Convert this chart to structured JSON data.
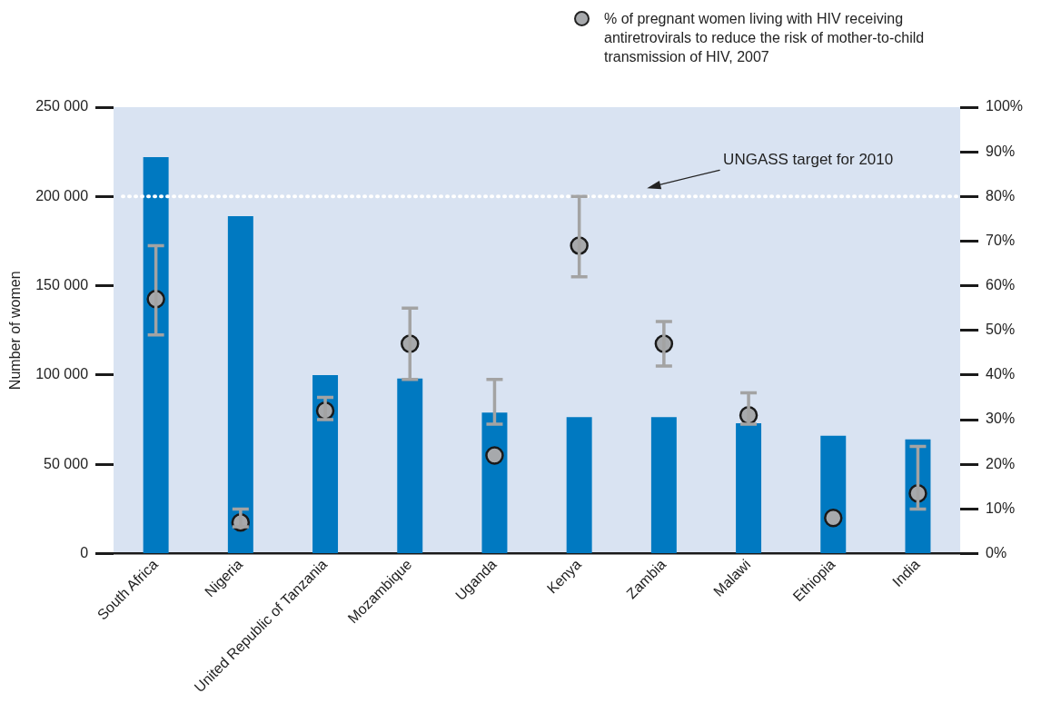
{
  "chart_data": {
    "type": "bar",
    "categories": [
      "South Africa",
      "Nigeria",
      "United Republic of Tanzania",
      "Mozambique",
      "Uganda",
      "Kenya",
      "Zambia",
      "Malawi",
      "Ethiopia",
      "India"
    ],
    "ylabel": "Number of women",
    "series": [
      {
        "color": "#0079c1",
        "values": [
          222000,
          189000,
          100000,
          98000,
          79000,
          76500,
          76500,
          73000,
          66000,
          64000
        ]
      },
      {
        "type": "scatter",
        "axis": "y2",
        "name": "% of pregnant women living with HIV receiving antiretrovirals to reduce the risk of mother-to-child transmission of HIV, 2007",
        "color": "#a7a9ac",
        "marker": "circle",
        "x": [
          "South Africa",
          "Nigeria",
          "United Republic of Tanzania",
          "Mozambique",
          "Uganda",
          "Kenya",
          "Zambia",
          "Malawi",
          "Ethiopia",
          "India"
        ],
        "values": [
          57,
          7,
          32,
          47,
          22,
          69,
          47,
          31,
          8,
          13.5
        ],
        "errors": [
          [
            49,
            69
          ],
          [
            6,
            10
          ],
          [
            30,
            35
          ],
          [
            39,
            55
          ],
          [
            29,
            39
          ],
          [
            62,
            80
          ],
          [
            42,
            52
          ],
          [
            29,
            36
          ],
          null,
          [
            10,
            24
          ]
        ]
      }
    ],
    "ylim": [
      0,
      250000
    ],
    "yticks": [
      {
        "value": 0,
        "label": "0"
      },
      {
        "value": 50000,
        "label": "50 000"
      },
      {
        "value": 100000,
        "label": "100 000"
      },
      {
        "value": 150000,
        "label": "150 000"
      },
      {
        "value": 200000,
        "label": "200 000"
      },
      {
        "value": 250000,
        "label": "250 000"
      }
    ],
    "y2lim": [
      0,
      100
    ],
    "y2ticks": [
      {
        "value": 0,
        "label": "0%"
      },
      {
        "value": 10,
        "label": "10%"
      },
      {
        "value": 20,
        "label": "20%"
      },
      {
        "value": 30,
        "label": "30%"
      },
      {
        "value": 40,
        "label": "40%"
      },
      {
        "value": 50,
        "label": "50%"
      },
      {
        "value": 60,
        "label": "60%"
      },
      {
        "value": 70,
        "label": "70%"
      },
      {
        "value": 80,
        "label": "80%"
      },
      {
        "value": 90,
        "label": "90%"
      },
      {
        "value": 100,
        "label": "100%"
      }
    ],
    "ref_lines": [
      {
        "axis": "y2",
        "value": 80,
        "label": "UNGASS target for 2010",
        "color": "#ffffff",
        "line_style": "dotted"
      }
    ],
    "grid": false,
    "legend": "top right"
  }
}
